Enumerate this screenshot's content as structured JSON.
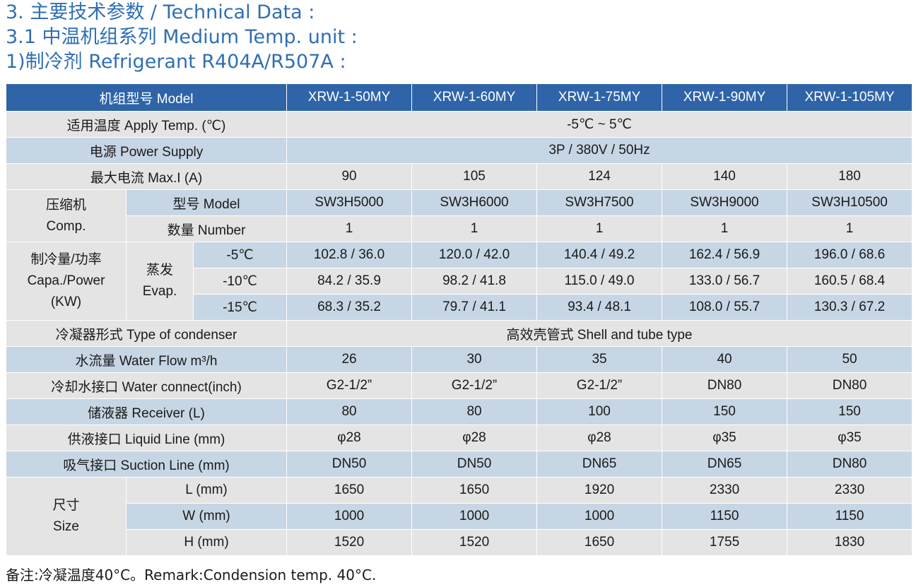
{
  "headings": {
    "line1": "3. 主要技术参数 / Technical Data :",
    "line2": "3.1 中温机组系列 Medium Temp. unit :",
    "line3": "1)制冷剂 Refrigerant  R404A/R507A :"
  },
  "table": {
    "model_label": "机组型号 Model",
    "models": [
      "XRW-1-50MY",
      "XRW-1-60MY",
      "XRW-1-75MY",
      "XRW-1-90MY",
      "XRW-1-105MY"
    ],
    "apply_temp_label": "适用温度 Apply Temp. (℃)",
    "apply_temp_value": "-5℃ ~ 5℃",
    "power_label": "电源 Power Supply",
    "power_value": "3P / 380V / 50Hz",
    "max_i_label": "最大电流 Max.I (A)",
    "max_i": [
      "90",
      "105",
      "124",
      "140",
      "180"
    ],
    "comp_label_cn": "压缩机",
    "comp_label_en": "Comp.",
    "comp_model_label": "型号 Model",
    "comp_models": [
      "SW3H5000",
      "SW3H6000",
      "SW3H7500",
      "SW3H9000",
      "SW3H10500"
    ],
    "comp_number_label": "数量 Number",
    "comp_numbers": [
      "1",
      "1",
      "1",
      "1",
      "1"
    ],
    "capa_label_1": "制冷量/功率",
    "capa_label_2": "Capa./Power",
    "capa_label_3": "(KW)",
    "evap_label_cn": "蒸发",
    "evap_label_en": "Evap.",
    "evap_temps": [
      "-5℃",
      "-10℃",
      "-15℃"
    ],
    "capa_values": [
      [
        "102.8 / 36.0",
        "120.0 / 42.0",
        "140.4 / 49.2",
        "162.4 / 56.9",
        "196.0 / 68.6"
      ],
      [
        "84.2 / 35.9",
        "98.2 / 41.8",
        "115.0 / 49.0",
        "133.0 / 56.7",
        "160.5 / 68.4"
      ],
      [
        "68.3 / 35.2",
        "79.7 / 41.1",
        "93.4 / 48.1",
        "108.0 / 55.7",
        "130.3 / 67.2"
      ]
    ],
    "condenser_label": "冷凝器形式 Type of condenser",
    "condenser_value": "高效壳管式 Shell and tube type",
    "water_flow_label": "水流量  Water Flow    m³/h",
    "water_flow": [
      "26",
      "30",
      "35",
      "40",
      "50"
    ],
    "water_connect_label": "冷却水接口 Water connect(inch)",
    "water_connect": [
      "G2-1/2”",
      "G2-1/2”",
      "G2-1/2”",
      "DN80",
      "DN80"
    ],
    "receiver_label": "储液器 Receiver (L)",
    "receiver": [
      "80",
      "80",
      "100",
      "150",
      "150"
    ],
    "liquid_line_label": "供液接口 Liquid Line (mm)",
    "liquid_line": [
      "φ28",
      "φ28",
      "φ28",
      "φ35",
      "φ35"
    ],
    "suction_line_label": "吸气接口 Suction Line (mm)",
    "suction_line": [
      "DN50",
      "DN50",
      "DN65",
      "DN65",
      "DN80"
    ],
    "size_label_cn": "尺寸",
    "size_label_en": "Size",
    "size_l_label": "L (mm)",
    "size_l": [
      "1650",
      "1650",
      "1920",
      "2330",
      "2330"
    ],
    "size_w_label": "W (mm)",
    "size_w": [
      "1000",
      "1000",
      "1000",
      "1150",
      "1150"
    ],
    "size_h_label": "H (mm)",
    "size_h": [
      "1520",
      "1520",
      "1650",
      "1755",
      "1830"
    ]
  },
  "remark": "备注:冷凝温度40°C。Remark:Condension temp. 40°C.",
  "colors": {
    "heading": "#2f6fb3",
    "header_row": "#2f64a8",
    "row_gray": "#e4e4e4",
    "row_blue": "#c7d6e4"
  }
}
